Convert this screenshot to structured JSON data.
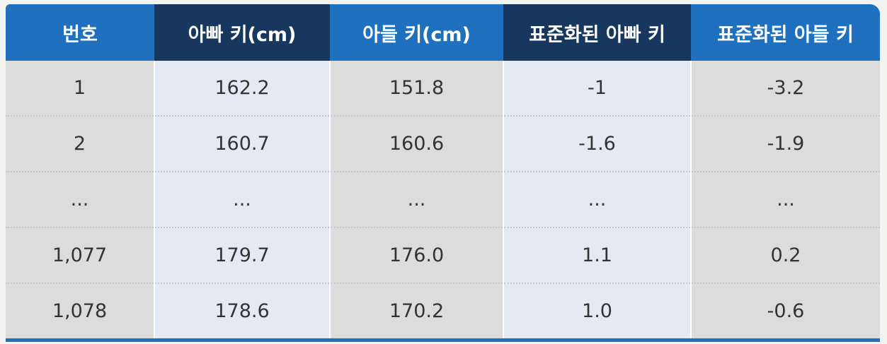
{
  "table": {
    "headers": [
      "번호",
      "아빠 키(cm)",
      "아들 키(cm)",
      "표준화된 아빠 키",
      "표준화된 아들 키"
    ],
    "rows": [
      [
        "1",
        "162.2",
        "151.8",
        "-1",
        "-3.2"
      ],
      [
        "2",
        "160.7",
        "160.6",
        "-1.6",
        "-1.9"
      ],
      [
        "...",
        "...",
        "...",
        "...",
        "..."
      ],
      [
        "1,077",
        "179.7",
        "176.0",
        "1.1",
        "0.2"
      ],
      [
        "1,078",
        "178.6",
        "170.2",
        "1.0",
        "-0.6"
      ]
    ]
  },
  "colors": {
    "header_blue": "#1f70bf",
    "header_dark": "#18375f",
    "cell_gray": "#dcdcdc",
    "cell_light": "#e4eaf4"
  }
}
